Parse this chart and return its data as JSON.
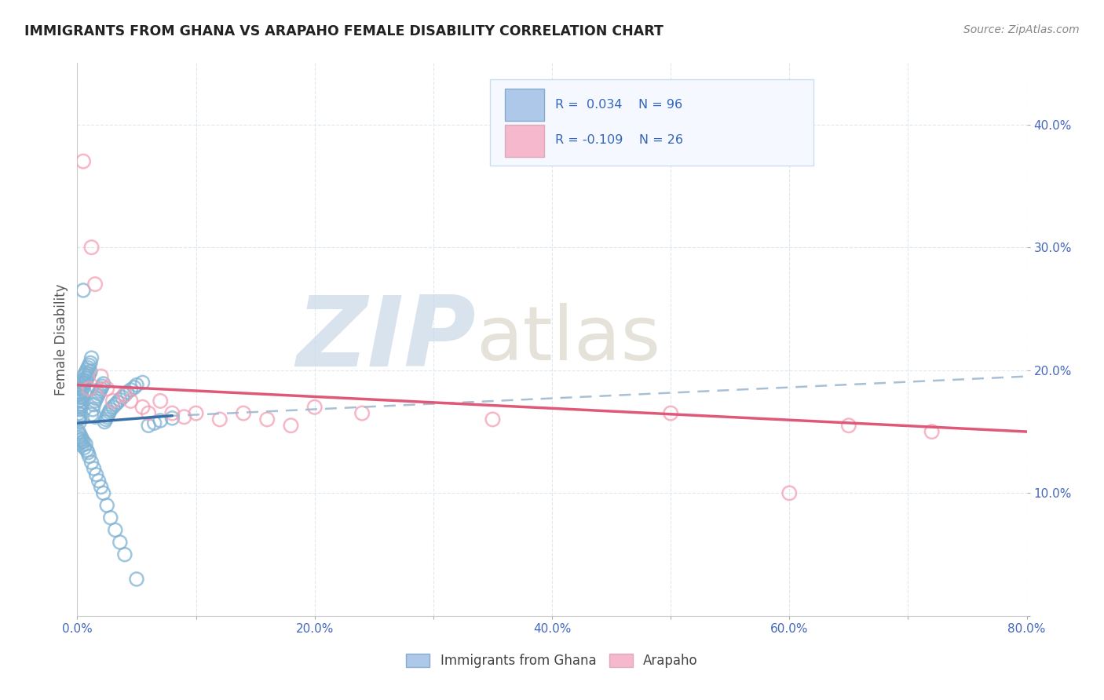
{
  "title": "IMMIGRANTS FROM GHANA VS ARAPAHO FEMALE DISABILITY CORRELATION CHART",
  "source": "Source: ZipAtlas.com",
  "ylabel": "Female Disability",
  "xlim": [
    0.0,
    0.8
  ],
  "ylim": [
    0.0,
    0.45
  ],
  "xticks": [
    0.0,
    0.1,
    0.2,
    0.3,
    0.4,
    0.5,
    0.6,
    0.7,
    0.8
  ],
  "yticks": [
    0.0,
    0.1,
    0.2,
    0.3,
    0.4
  ],
  "xtick_labels": [
    "0.0%",
    "",
    "20.0%",
    "",
    "40.0%",
    "",
    "60.0%",
    "",
    "80.0%"
  ],
  "ytick_labels": [
    "",
    "10.0%",
    "20.0%",
    "30.0%",
    "40.0%"
  ],
  "blue_color": "#7fb3d3",
  "pink_color": "#f4a0b5",
  "blue_line_color": "#3a6fa8",
  "pink_line_color": "#e05878",
  "dashed_line_color": "#a0b8d0",
  "background_color": "#ffffff",
  "grid_color": "#dde8f0",
  "legend_box_color": "#f5f8ff",
  "legend_border_color": "#ccddee",
  "blue_legend_fill": "#adc8e8",
  "pink_legend_fill": "#f5b8cc",
  "legend_text_color": "#3366bb",
  "title_color": "#222222",
  "source_color": "#888888",
  "axis_label_color": "#4466bb",
  "blue_scatter_x": [
    0.001,
    0.001,
    0.001,
    0.001,
    0.001,
    0.002,
    0.002,
    0.002,
    0.002,
    0.002,
    0.002,
    0.003,
    0.003,
    0.003,
    0.003,
    0.003,
    0.004,
    0.004,
    0.004,
    0.004,
    0.005,
    0.005,
    0.005,
    0.006,
    0.006,
    0.006,
    0.007,
    0.007,
    0.008,
    0.008,
    0.009,
    0.009,
    0.01,
    0.01,
    0.011,
    0.011,
    0.012,
    0.012,
    0.013,
    0.014,
    0.015,
    0.015,
    0.016,
    0.017,
    0.018,
    0.019,
    0.02,
    0.021,
    0.022,
    0.023,
    0.024,
    0.025,
    0.026,
    0.027,
    0.028,
    0.03,
    0.032,
    0.034,
    0.036,
    0.038,
    0.04,
    0.042,
    0.045,
    0.048,
    0.05,
    0.055,
    0.06,
    0.065,
    0.07,
    0.08,
    0.001,
    0.001,
    0.002,
    0.002,
    0.003,
    0.003,
    0.004,
    0.004,
    0.005,
    0.006,
    0.007,
    0.008,
    0.009,
    0.01,
    0.012,
    0.014,
    0.016,
    0.018,
    0.02,
    0.022,
    0.025,
    0.028,
    0.032,
    0.036,
    0.04,
    0.05
  ],
  "blue_scatter_y": [
    0.18,
    0.175,
    0.17,
    0.165,
    0.16,
    0.185,
    0.178,
    0.172,
    0.168,
    0.162,
    0.158,
    0.188,
    0.182,
    0.176,
    0.17,
    0.164,
    0.19,
    0.184,
    0.178,
    0.172,
    0.265,
    0.192,
    0.186,
    0.196,
    0.189,
    0.182,
    0.198,
    0.191,
    0.2,
    0.193,
    0.202,
    0.195,
    0.204,
    0.197,
    0.206,
    0.199,
    0.21,
    0.164,
    0.168,
    0.172,
    0.175,
    0.162,
    0.177,
    0.179,
    0.181,
    0.183,
    0.185,
    0.187,
    0.189,
    0.158,
    0.16,
    0.162,
    0.164,
    0.166,
    0.168,
    0.17,
    0.172,
    0.174,
    0.176,
    0.178,
    0.18,
    0.182,
    0.184,
    0.186,
    0.188,
    0.19,
    0.155,
    0.157,
    0.159,
    0.161,
    0.15,
    0.145,
    0.148,
    0.143,
    0.146,
    0.141,
    0.144,
    0.139,
    0.142,
    0.137,
    0.14,
    0.135,
    0.133,
    0.13,
    0.125,
    0.12,
    0.115,
    0.11,
    0.105,
    0.1,
    0.09,
    0.08,
    0.07,
    0.06,
    0.05,
    0.03
  ],
  "pink_scatter_x": [
    0.005,
    0.01,
    0.012,
    0.015,
    0.02,
    0.025,
    0.03,
    0.04,
    0.045,
    0.055,
    0.06,
    0.07,
    0.08,
    0.09,
    0.1,
    0.12,
    0.14,
    0.16,
    0.18,
    0.2,
    0.24,
    0.35,
    0.5,
    0.6,
    0.65,
    0.72
  ],
  "pink_scatter_y": [
    0.37,
    0.185,
    0.3,
    0.27,
    0.195,
    0.185,
    0.175,
    0.18,
    0.175,
    0.17,
    0.165,
    0.175,
    0.165,
    0.162,
    0.165,
    0.16,
    0.165,
    0.16,
    0.155,
    0.17,
    0.165,
    0.16,
    0.165,
    0.1,
    0.155,
    0.15
  ],
  "blue_short_line_x": [
    0.0,
    0.08
  ],
  "blue_short_line_y": [
    0.157,
    0.163
  ],
  "pink_full_line_x": [
    0.0,
    0.8
  ],
  "pink_full_line_y": [
    0.188,
    0.15
  ],
  "dashed_line_x": [
    0.06,
    0.8
  ],
  "dashed_line_y": [
    0.162,
    0.195
  ]
}
